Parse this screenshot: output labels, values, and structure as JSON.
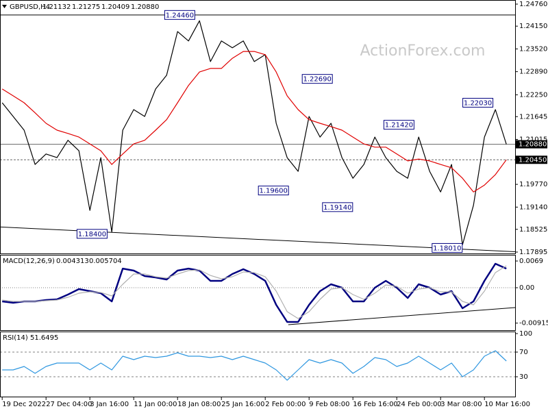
{
  "chart_data": [
    {
      "type": "line",
      "title": "GBPUSD,H4",
      "watermark": "ActionForex.com",
      "quote": {
        "values": [
          1.21132,
          1.21275,
          1.20409,
          1.2088
        ],
        "value_labels": [
          "1.21132",
          "1.21275",
          "1.20409",
          "1.20880"
        ]
      },
      "x": [
        0,
        1,
        2,
        3,
        4,
        5,
        6,
        7,
        8,
        9,
        10,
        11,
        12,
        13,
        14,
        15,
        16,
        17,
        18,
        19,
        20,
        21,
        22,
        23,
        24,
        25,
        26,
        27,
        28,
        29,
        30,
        31,
        32,
        33,
        34,
        35,
        36,
        37,
        38,
        39,
        40,
        41,
        42,
        43,
        44,
        45,
        46
      ],
      "xlim": [
        -0.2,
        46.8
      ],
      "ylim": [
        1.17857,
        1.24874
      ],
      "yticks": [
        {
          "value": 1.2476,
          "label": "1.24760"
        },
        {
          "value": 1.2415,
          "label": "1.24150"
        },
        {
          "value": 1.2352,
          "label": "1.23520"
        },
        {
          "value": 1.2289,
          "label": "1.22890"
        },
        {
          "value": 1.2225,
          "label": "1.22250"
        },
        {
          "value": 1.21645,
          "label": "1.21645"
        },
        {
          "value": 1.21015,
          "label": "1.21015"
        },
        {
          "value": 1.1977,
          "label": "1.19770"
        },
        {
          "value": 1.1914,
          "label": "1.19140"
        },
        {
          "value": 1.18525,
          "label": "1.18525"
        },
        {
          "value": 1.17895,
          "label": "1.17895"
        }
      ],
      "series": [
        {
          "color": "#000000",
          "values": [
            1.2203,
            1.2165,
            1.2127,
            1.2032,
            1.2061,
            1.2051,
            1.2099,
            1.207,
            1.1905,
            1.2051,
            1.1845,
            1.2127,
            1.2184,
            1.2165,
            1.2241,
            1.2279,
            1.24,
            1.2374,
            1.243,
            1.2317,
            1.2374,
            1.2355,
            1.2374,
            1.2317,
            1.2336,
            1.2146,
            1.2051,
            1.2013,
            1.2165,
            1.2108,
            1.2146,
            1.2051,
            1.1994,
            1.2032,
            1.2108,
            1.2051,
            1.2013,
            1.1994,
            1.2108,
            1.2013,
            1.1956,
            1.2032,
            1.181,
            1.1919,
            1.2108,
            1.2184,
            1.2088
          ]
        },
        {
          "color": "#e00000",
          "values": [
            1.2241,
            1.2222,
            1.2203,
            1.2175,
            1.2146,
            1.2127,
            1.2118,
            1.2108,
            1.2089,
            1.207,
            1.2032,
            1.2061,
            1.2089,
            1.2099,
            1.2127,
            1.2156,
            1.2203,
            1.2251,
            1.2288,
            1.2298,
            1.2298,
            1.2326,
            1.2345,
            1.2345,
            1.2336,
            1.2288,
            1.2222,
            1.2184,
            1.2156,
            1.2146,
            1.2137,
            1.2127,
            1.2108,
            1.2089,
            1.208,
            1.208,
            1.2061,
            1.2042,
            1.2047,
            1.2042,
            1.2032,
            1.2023,
            1.1994,
            1.1956,
            1.1975,
            1.2004,
            1.2045
          ]
        }
      ],
      "levels": [
        1.2446
      ],
      "price_markers": [
        {
          "value": 1.2088,
          "label": "1.20880",
          "style": "solid"
        },
        {
          "value": 1.2045,
          "label": "1.20450",
          "style": "dashed"
        }
      ],
      "trendline": {
        "x": [
          -0.2,
          46.8
        ],
        "y": [
          1.1859,
          1.17905
        ]
      },
      "annotations": [
        {
          "x": 16.2,
          "value": 1.2446,
          "label": "1.24460"
        },
        {
          "x": 28.75,
          "value": 1.2269,
          "label": "1.22690"
        },
        {
          "x": 36.2,
          "value": 1.2142,
          "label": "1.21420"
        },
        {
          "x": 43.4,
          "value": 1.2203,
          "label": "1.22030"
        },
        {
          "x": 24.75,
          "value": 1.196,
          "label": "1.19600"
        },
        {
          "x": 30.6,
          "value": 1.1914,
          "label": "1.19140"
        },
        {
          "x": 8.2,
          "value": 1.184,
          "label": "1.18400"
        },
        {
          "x": 40.6,
          "value": 1.1801,
          "label": "1.18010"
        }
      ]
    },
    {
      "type": "line",
      "title": "MACD(12,26,9)",
      "title_values": [
        0.004313,
        0.005704
      ],
      "x": [
        0,
        1,
        2,
        3,
        4,
        5,
        6,
        7,
        8,
        9,
        10,
        11,
        12,
        13,
        14,
        15,
        16,
        17,
        18,
        19,
        20,
        21,
        22,
        23,
        24,
        25,
        26,
        27,
        28,
        29,
        30,
        31,
        32,
        33,
        34,
        35,
        36,
        37,
        38,
        39,
        40,
        41,
        42,
        43,
        44,
        45,
        46
      ],
      "xlim": [
        -0.2,
        46.8
      ],
      "ylim": [
        -0.01115,
        0.0085
      ],
      "yticks": [
        0.0069,
        {
          "value": 0,
          "label": "0.00"
        },
        -0.00915
      ],
      "levels": [
        0
      ],
      "series": [
        {
          "color": "#000080",
          "values": [
            -0.00354,
            -0.00389,
            -0.00354,
            -0.00354,
            -0.00318,
            -0.00301,
            -0.00177,
            -0.00035,
            -0.00088,
            -0.00142,
            -0.00354,
            0.00495,
            0.00442,
            0.00301,
            0.00265,
            0.00212,
            0.00442,
            0.00495,
            0.00442,
            0.00177,
            0.00177,
            0.00354,
            0.00478,
            0.00354,
            0.00177,
            -0.00442,
            -0.00885,
            -0.00885,
            -0.00442,
            -0.00088,
            0.00088,
            0,
            -0.00354,
            -0.00354,
            0,
            0.00177,
            0,
            -0.00265,
            0.00088,
            0,
            -0.00177,
            -0.00088,
            -0.00531,
            -0.00354,
            0.00177,
            0.00619,
            0.00495
          ]
        },
        {
          "color": "#b0b0b0",
          "values": [
            -0.00318,
            -0.00354,
            -0.00354,
            -0.00354,
            -0.00336,
            -0.00318,
            -0.00248,
            -0.00142,
            -0.00106,
            -0.00124,
            -0.00212,
            0.00088,
            0.00354,
            0.00354,
            0.00283,
            0.00248,
            0.00354,
            0.00442,
            0.0046,
            0.00318,
            0.0023,
            0.00283,
            0.00407,
            0.00389,
            0.00283,
            -0.00088,
            -0.00619,
            -0.00796,
            -0.00619,
            -0.00301,
            -0.00035,
            0,
            -0.00177,
            -0.00301,
            -0.00142,
            0.00071,
            0.00035,
            -0.00142,
            -0.00035,
            0,
            -0.00106,
            -0.00106,
            -0.00354,
            -0.00442,
            -0.00088,
            0.00389,
            0.00566
          ]
        }
      ],
      "trendline": {
        "x": [
          26.1,
          46.8
        ],
        "y": [
          -0.00955,
          -0.00513
        ]
      }
    },
    {
      "type": "line",
      "title": "RSI(14)",
      "title_values": [
        51.6495
      ],
      "x": [
        0,
        1,
        2,
        3,
        4,
        5,
        6,
        7,
        8,
        9,
        10,
        11,
        12,
        13,
        14,
        15,
        16,
        17,
        18,
        19,
        20,
        21,
        22,
        23,
        24,
        25,
        26,
        27,
        28,
        29,
        30,
        31,
        32,
        33,
        34,
        35,
        36,
        37,
        38,
        39,
        40,
        41,
        42,
        43,
        44,
        45,
        46
      ],
      "xlim": [
        -0.2,
        46.8
      ],
      "ylim": [
        -3.3,
        103.3
      ],
      "yticks": [
        100,
        70,
        30
      ],
      "levels": [
        70,
        30
      ],
      "xticks": [
        {
          "value": 0,
          "label": "19 Dec 2022"
        },
        {
          "value": 4,
          "label": "27 Dec 04:00"
        },
        {
          "value": 8,
          "label": "3 Jan 16:00"
        },
        {
          "value": 12,
          "label": "11 Jan 00:00"
        },
        {
          "value": 16,
          "label": "18 Jan 08:00"
        },
        {
          "value": 20,
          "label": "25 Jan 16:00"
        },
        {
          "value": 24,
          "label": "2 Feb 00:00"
        },
        {
          "value": 28,
          "label": "9 Feb 08:00"
        },
        {
          "value": 32,
          "label": "16 Feb 16:00"
        },
        {
          "value": 36,
          "label": "24 Feb 00:00"
        },
        {
          "value": 40,
          "label": "3 Mar 08:00"
        },
        {
          "value": 44,
          "label": "10 Mar 16:00"
        }
      ],
      "series": [
        {
          "color": "#2f97e0",
          "values": [
            41.1,
            41.1,
            46.7,
            35.6,
            46.7,
            52.2,
            52.2,
            52.2,
            41.1,
            52.2,
            41.1,
            63.3,
            57.8,
            63.3,
            61.1,
            63.3,
            68.9,
            63.3,
            63.3,
            61.1,
            63.3,
            57.8,
            63.3,
            57.8,
            52.2,
            41.1,
            24.4,
            41.1,
            57.8,
            52.2,
            57.8,
            52.2,
            35.6,
            46.7,
            61.1,
            57.8,
            46.7,
            52.2,
            63.3,
            52.2,
            41.1,
            52.2,
            30,
            41.1,
            63.3,
            72.2,
            55.6
          ]
        }
      ]
    }
  ]
}
